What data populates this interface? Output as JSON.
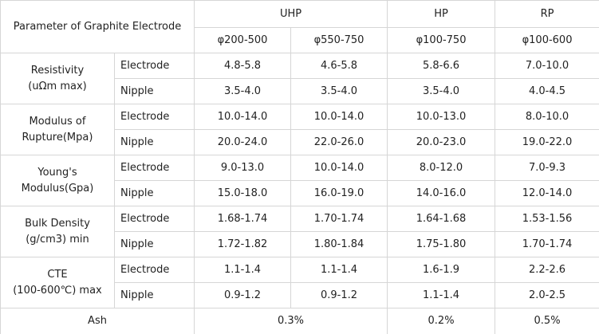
{
  "header": {
    "title": "Parameter of Graphite Electrode",
    "groups": [
      {
        "name": "UHP",
        "grades": [
          "φ200-500",
          "φ550-750"
        ]
      },
      {
        "name": "HP",
        "grades": [
          "φ100-750"
        ]
      },
      {
        "name": "RP",
        "grades": [
          "φ100-600"
        ]
      }
    ]
  },
  "properties": [
    {
      "label": [
        "Resistivity",
        "(uΩm max)"
      ],
      "rows": [
        {
          "part": "Electrode",
          "values": [
            "4.8-5.8",
            "4.6-5.8",
            "5.8-6.6",
            "7.0-10.0"
          ]
        },
        {
          "part": "Nipple",
          "values": [
            "3.5-4.0",
            "3.5-4.0",
            "3.5-4.0",
            "4.0-4.5"
          ]
        }
      ]
    },
    {
      "label": [
        "Modulus of",
        "Rupture(Mpa)"
      ],
      "rows": [
        {
          "part": "Electrode",
          "values": [
            "10.0-14.0",
            "10.0-14.0",
            "10.0-13.0",
            "8.0-10.0"
          ]
        },
        {
          "part": "Nipple",
          "values": [
            "20.0-24.0",
            "22.0-26.0",
            "20.0-23.0",
            "19.0-22.0"
          ]
        }
      ]
    },
    {
      "label": [
        "Young's",
        "Modulus(Gpa)"
      ],
      "rows": [
        {
          "part": "Electrode",
          "values": [
            "9.0-13.0",
            "10.0-14.0",
            "8.0-12.0",
            "7.0-9.3"
          ]
        },
        {
          "part": "Nipple",
          "values": [
            "15.0-18.0",
            "16.0-19.0",
            "14.0-16.0",
            "12.0-14.0"
          ]
        }
      ]
    },
    {
      "label": [
        "Bulk Density",
        "(g/cm3) min"
      ],
      "rows": [
        {
          "part": "Electrode",
          "values": [
            "1.68-1.74",
            "1.70-1.74",
            "1.64-1.68",
            "1.53-1.56"
          ]
        },
        {
          "part": "Nipple",
          "values": [
            "1.72-1.82",
            "1.80-1.84",
            "1.75-1.80",
            "1.70-1.74"
          ]
        }
      ]
    },
    {
      "label": [
        "CTE",
        "(100-600℃) max"
      ],
      "rows": [
        {
          "part": "Electrode",
          "values": [
            "1.1-1.4",
            "1.1-1.4",
            "1.6-1.9",
            "2.2-2.6"
          ]
        },
        {
          "part": "Nipple",
          "values": [
            "0.9-1.2",
            "0.9-1.2",
            "1.1-1.4",
            "2.0-2.5"
          ]
        }
      ]
    }
  ],
  "ash": {
    "label": "Ash",
    "values": [
      "0.3%",
      "0.2%",
      "0.5%"
    ]
  }
}
